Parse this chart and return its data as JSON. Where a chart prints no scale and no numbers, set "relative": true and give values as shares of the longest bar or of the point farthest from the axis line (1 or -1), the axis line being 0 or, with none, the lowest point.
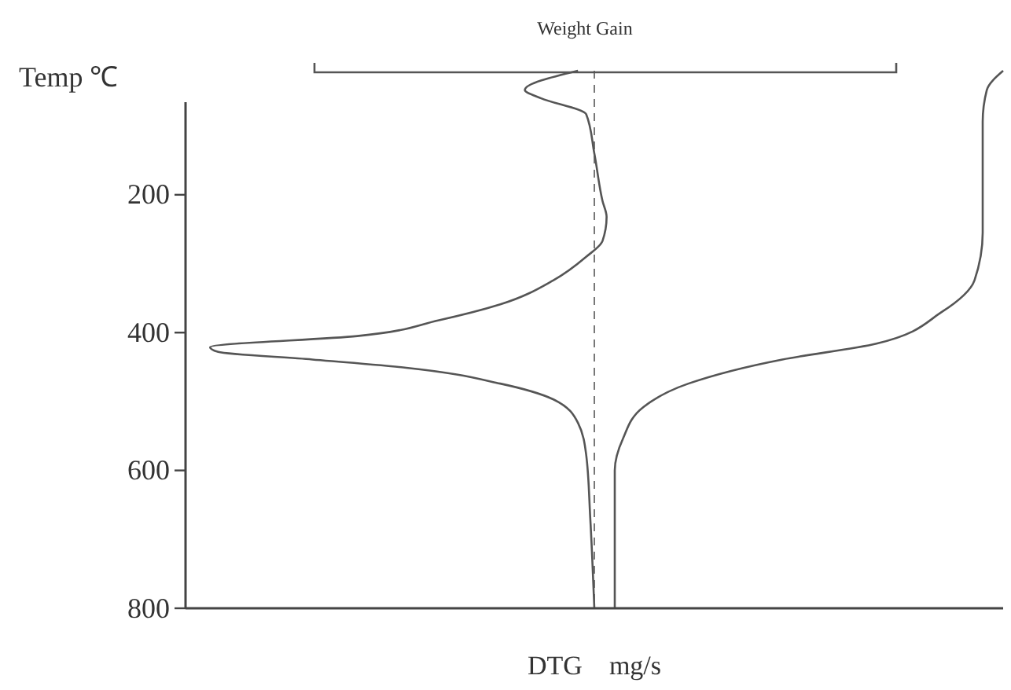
{
  "chart_data": {
    "type": "line",
    "orientation": "horizontal",
    "relative": true,
    "xlabel": "DTG    mg/s",
    "ylabel": "Temp ℃",
    "annotations": [
      "Weight Gain"
    ],
    "ylim": [
      800,
      20
    ],
    "yticks": [
      200,
      400,
      600,
      800
    ],
    "ref_lines": [
      {
        "axis": "x",
        "value": 0,
        "line_style": "dashed",
        "color": "#777777"
      }
    ],
    "grid": false,
    "marker": "none",
    "line_style": "solid",
    "series": [
      {
        "color": "#555555",
        "x": [
          20,
          48,
          60,
          83,
          140,
          209,
          232,
          267,
          290,
          324,
          359,
          382,
          405,
          421,
          428,
          439,
          451,
          474,
          497,
          531,
          577,
          669,
          800
        ],
        "values": [
          -0.04,
          -0.17,
          -0.13,
          -0.02,
          0,
          0.02,
          0.03,
          0.02,
          -0.02,
          -0.1,
          -0.23,
          -0.38,
          -0.58,
          -0.94,
          -0.92,
          -0.69,
          -0.46,
          -0.23,
          -0.1,
          -0.04,
          -0.02,
          -0.01,
          0
        ]
      },
      {
        "color": "#555555",
        "x": [
          20,
          48,
          94,
          255,
          324,
          370,
          416,
          439,
          474,
          508,
          554,
          600,
          800
        ],
        "values": [
          1,
          0.96,
          0.95,
          0.95,
          0.93,
          0.85,
          0.69,
          0.46,
          0.23,
          0.12,
          0.07,
          0.05,
          0.05
        ]
      }
    ]
  }
}
